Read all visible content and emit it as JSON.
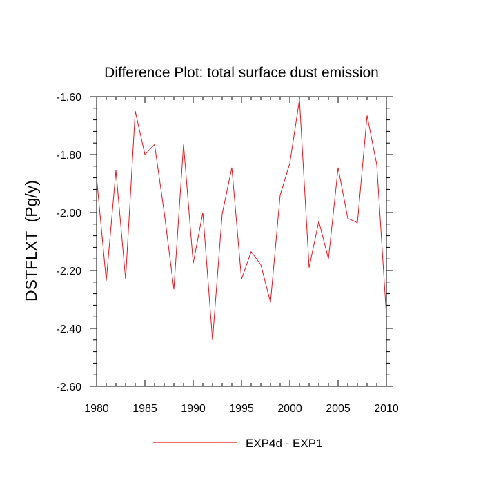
{
  "chart_data": {
    "type": "line",
    "title": "Difference Plot: total surface dust emission",
    "xlabel": "",
    "ylabel": "DSTFLXT  (Pg/y)",
    "xlim": [
      1980,
      2010
    ],
    "ylim": [
      -2.6,
      -1.6
    ],
    "x_ticks": [
      1980,
      1985,
      1990,
      1995,
      2000,
      2005,
      2010
    ],
    "x_tick_labels": [
      "1980",
      "1985",
      "1990",
      "1995",
      "2000",
      "2005",
      "2010"
    ],
    "y_ticks": [
      -2.6,
      -2.4,
      -2.2,
      -2.0,
      -1.8,
      -1.6
    ],
    "y_tick_labels": [
      "-2.60",
      "-2.40",
      "-2.20",
      "-2.00",
      "-1.80",
      "-1.60"
    ],
    "x_minor_step": 1,
    "y_minor_step": 0.04,
    "legend_position": "bottom-center",
    "series": [
      {
        "name": "EXP4d - EXP1",
        "color": "#e8141e",
        "x": [
          1980,
          1981,
          1982,
          1983,
          1984,
          1985,
          1986,
          1987,
          1988,
          1989,
          1990,
          1991,
          1992,
          1993,
          1994,
          1995,
          1996,
          1997,
          1998,
          1999,
          2000,
          2001,
          2002,
          2003,
          2004,
          2005,
          2006,
          2007,
          2008,
          2009,
          2010
        ],
        "values": [
          -1.88,
          -2.235,
          -1.855,
          -2.23,
          -1.65,
          -1.8,
          -1.765,
          -2.0,
          -2.265,
          -1.765,
          -2.175,
          -2.0,
          -2.44,
          -2.005,
          -1.845,
          -2.23,
          -2.135,
          -2.18,
          -2.31,
          -1.94,
          -1.83,
          -1.61,
          -2.19,
          -2.03,
          -2.16,
          -1.845,
          -2.02,
          -2.035,
          -1.665,
          -1.835,
          -2.355
        ]
      }
    ]
  }
}
